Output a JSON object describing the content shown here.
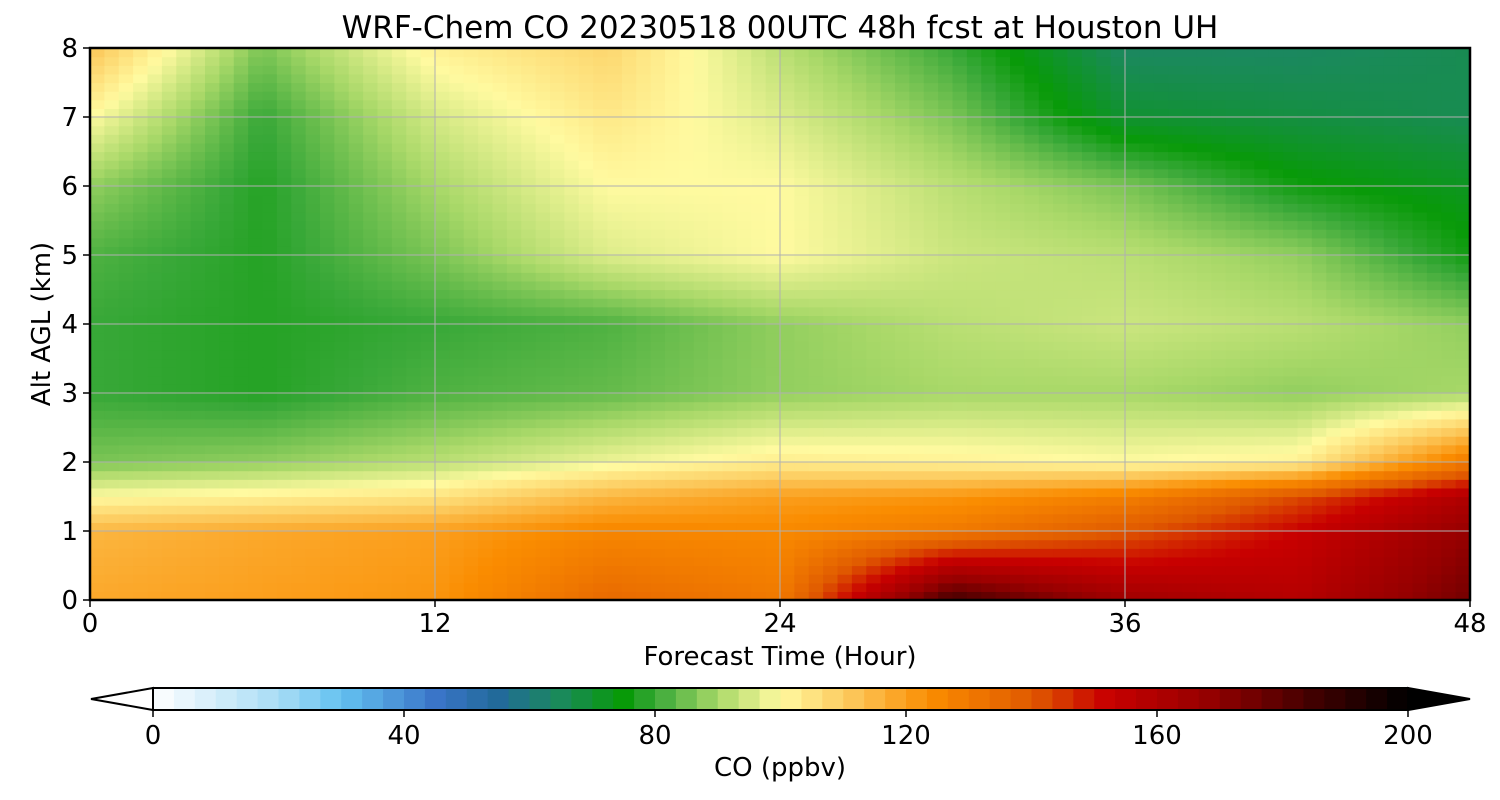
{
  "chart_data": {
    "type": "heatmap",
    "title": "WRF-Chem CO  20230518 00UTC 48h fcst at Houston UH",
    "xlabel": "Forecast Time (Hour)",
    "ylabel": "Alt AGL (km)",
    "xlim": [
      0,
      48
    ],
    "ylim": [
      0,
      8
    ],
    "x_ticks": [
      0,
      12,
      24,
      36,
      48
    ],
    "y_ticks": [
      0,
      1,
      2,
      3,
      4,
      5,
      6,
      7,
      8
    ],
    "grid": true,
    "x": [
      0,
      6,
      12,
      18,
      24,
      30,
      36,
      42,
      48
    ],
    "y": [
      0,
      1,
      1.5,
      2,
      3,
      4,
      5,
      6,
      7,
      8
    ],
    "z": [
      [
        118,
        120,
        122,
        135,
        130,
        185,
        165,
        158,
        175
      ],
      [
        115,
        118,
        120,
        126,
        125,
        130,
        140,
        152,
        168
      ],
      [
        100,
        102,
        105,
        115,
        120,
        122,
        128,
        142,
        160
      ],
      [
        86,
        88,
        92,
        98,
        103,
        102,
        100,
        102,
        130
      ],
      [
        80,
        78,
        82,
        84,
        88,
        90,
        90,
        88,
        90
      ],
      [
        80,
        78,
        80,
        82,
        88,
        92,
        94,
        92,
        88
      ],
      [
        82,
        78,
        86,
        96,
        100,
        94,
        92,
        88,
        76
      ],
      [
        88,
        78,
        90,
        100,
        100,
        92,
        86,
        76,
        72
      ],
      [
        100,
        80,
        95,
        104,
        96,
        86,
        70,
        68,
        66
      ],
      [
        112,
        86,
        102,
        108,
        92,
        80,
        64,
        64,
        66
      ]
    ],
    "colorbar": {
      "label": "CO  (ppbv)",
      "min": 0,
      "max": 200,
      "ticks": [
        0,
        40,
        80,
        120,
        160,
        200
      ],
      "extend": "both",
      "colors": [
        {
          "v": 0,
          "c": "#ffffff"
        },
        {
          "v": 20,
          "c": "#a8dcf5"
        },
        {
          "v": 30,
          "c": "#64c2f0"
        },
        {
          "v": 45,
          "c": "#3a75c8"
        },
        {
          "v": 55,
          "c": "#226a9a"
        },
        {
          "v": 65,
          "c": "#1a8a5a"
        },
        {
          "v": 75,
          "c": "#089a08"
        },
        {
          "v": 80,
          "c": "#38a838"
        },
        {
          "v": 90,
          "c": "#a8d868"
        },
        {
          "v": 100,
          "c": "#fffaa0"
        },
        {
          "v": 112,
          "c": "#fcc455"
        },
        {
          "v": 124,
          "c": "#fa8c00"
        },
        {
          "v": 140,
          "c": "#e05a00"
        },
        {
          "v": 152,
          "c": "#c80000"
        },
        {
          "v": 168,
          "c": "#960000"
        },
        {
          "v": 185,
          "c": "#400000"
        },
        {
          "v": 200,
          "c": "#000000"
        }
      ]
    }
  }
}
